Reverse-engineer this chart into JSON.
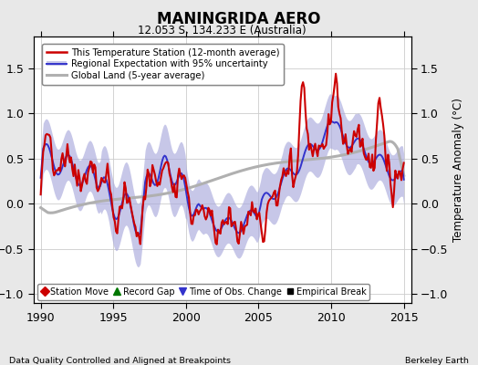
{
  "title": "MANINGRIDA AERO",
  "subtitle": "12.053 S, 134.233 E (Australia)",
  "xlabel_left": "Data Quality Controlled and Aligned at Breakpoints",
  "xlabel_right": "Berkeley Earth",
  "ylabel": "Temperature Anomaly (°C)",
  "xlim": [
    1989.5,
    2015.5
  ],
  "ylim": [
    -1.1,
    1.85
  ],
  "yticks": [
    -1,
    -0.5,
    0,
    0.5,
    1,
    1.5
  ],
  "xticks": [
    1990,
    1995,
    2000,
    2005,
    2010,
    2015
  ],
  "bg_color": "#e8e8e8",
  "plot_bg_color": "#ffffff",
  "grid_color": "#cccccc",
  "station_color": "#cc0000",
  "regional_color": "#3333cc",
  "regional_fill_color": "#aaaadd",
  "global_color": "#b0b0b0"
}
